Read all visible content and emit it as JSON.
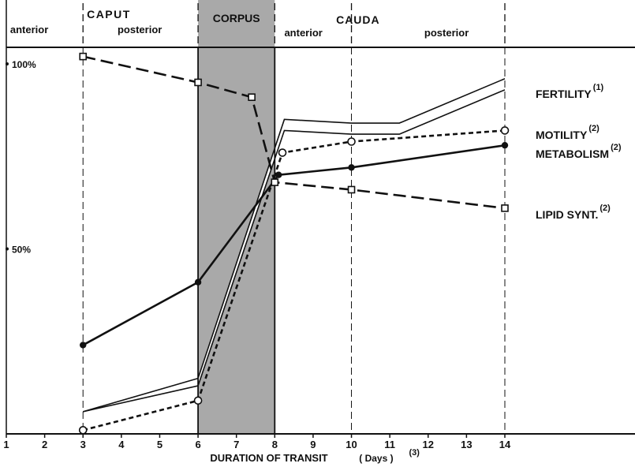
{
  "chart_data": {
    "type": "line",
    "xlabel": "DURATION    OF    TRANSIT",
    "xlabel_unit": "( Days )",
    "xlabel_ref": "(3)",
    "x_ticks": [
      "1",
      "2",
      "3",
      "4",
      "5",
      "6",
      "7",
      "8",
      "9",
      "10",
      "11",
      "12",
      "13",
      "14"
    ],
    "y_ticks": [
      {
        "value": 100,
        "label": "100%"
      },
      {
        "value": 50,
        "label": "50%"
      }
    ],
    "xlim": [
      1,
      16.4
    ],
    "ylim": [
      0,
      104.5
    ],
    "grid": false,
    "regions": [
      {
        "name": "CAPUT",
        "subdivisions": [
          "anterior",
          "posterior"
        ],
        "x_range": [
          1,
          6
        ],
        "sub_boundary": 3
      },
      {
        "name": "CORPUS",
        "x_range": [
          6,
          8
        ],
        "shaded": true
      },
      {
        "name": "CAUDA",
        "subdivisions": [
          "anterior",
          "posterior"
        ],
        "x_range": [
          8,
          14
        ],
        "sub_boundary": 10
      }
    ],
    "series": [
      {
        "name": "FERTILITY",
        "ref": "(1)",
        "style": "double-solid",
        "x": [
          3,
          6,
          8.25,
          10,
          11.25,
          14
        ],
        "y_upper": [
          6,
          15,
          85,
          84,
          84,
          96
        ],
        "y_lower": [
          6,
          13,
          82,
          81,
          81,
          93
        ]
      },
      {
        "name": "MOTILITY",
        "ref": "(2)",
        "style": "dashed",
        "marker": "open-circle",
        "x": [
          3,
          6,
          8.2,
          10,
          14
        ],
        "y": [
          1,
          9,
          76,
          79,
          82
        ]
      },
      {
        "name": "METABOLISM",
        "ref": "(2)",
        "style": "solid",
        "marker": "filled-circle",
        "x": [
          3,
          6,
          8.1,
          10,
          14
        ],
        "y": [
          24,
          41,
          70,
          72,
          78
        ]
      },
      {
        "name": "LIPID  SYNT.",
        "ref": "(2)",
        "style": "long-dash",
        "marker": "open-square",
        "x": [
          3,
          6,
          7.4,
          8,
          10,
          14
        ],
        "y": [
          102,
          95,
          91,
          68,
          66,
          61
        ]
      }
    ]
  }
}
